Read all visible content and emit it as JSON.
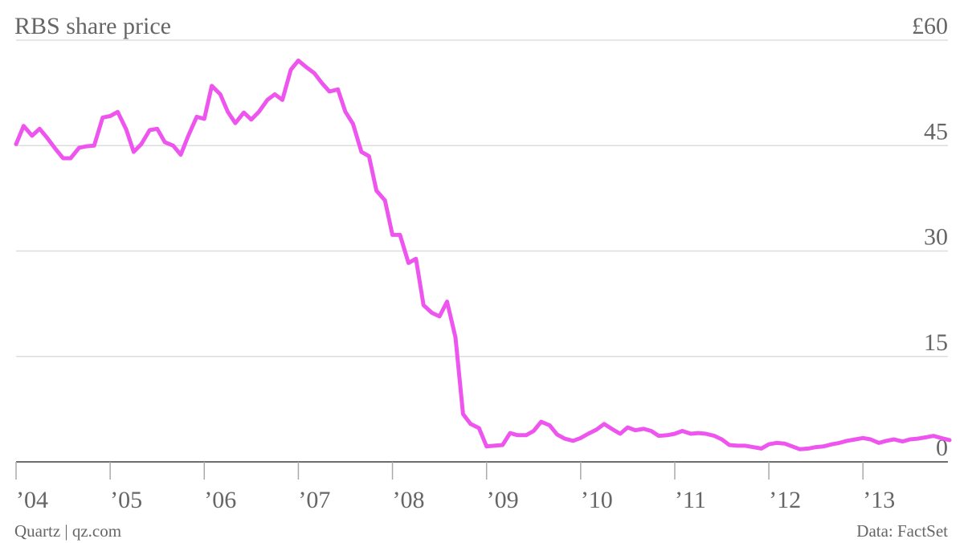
{
  "chart_data": {
    "type": "line",
    "title": "RBS share price",
    "credit": "Quartz | qz.com",
    "source": "Data: FactSet",
    "x": [
      2004.0,
      2004.08,
      2004.17,
      2004.25,
      2004.33,
      2004.42,
      2004.5,
      2004.58,
      2004.67,
      2004.75,
      2004.83,
      2004.92,
      2005.0,
      2005.08,
      2005.17,
      2005.25,
      2005.33,
      2005.42,
      2005.5,
      2005.58,
      2005.67,
      2005.75,
      2005.83,
      2005.92,
      2006.0,
      2006.08,
      2006.17,
      2006.25,
      2006.33,
      2006.42,
      2006.5,
      2006.58,
      2006.67,
      2006.75,
      2006.83,
      2006.92,
      2007.0,
      2007.08,
      2007.17,
      2007.25,
      2007.33,
      2007.42,
      2007.5,
      2007.58,
      2007.67,
      2007.75,
      2007.83,
      2007.92,
      2008.0,
      2008.08,
      2008.17,
      2008.25,
      2008.33,
      2008.42,
      2008.5,
      2008.58,
      2008.67,
      2008.75,
      2008.83,
      2008.92,
      2009.0,
      2009.08,
      2009.17,
      2009.25,
      2009.33,
      2009.42,
      2009.5,
      2009.58,
      2009.67,
      2009.75,
      2009.83,
      2009.92,
      2010.0,
      2010.08,
      2010.17,
      2010.25,
      2010.33,
      2010.42,
      2010.5,
      2010.58,
      2010.67,
      2010.75,
      2010.83,
      2010.92,
      2011.0,
      2011.08,
      2011.17,
      2011.25,
      2011.33,
      2011.42,
      2011.5,
      2011.58,
      2011.67,
      2011.75,
      2011.83,
      2011.92,
      2012.0,
      2012.08,
      2012.17,
      2012.25,
      2012.33,
      2012.42,
      2012.5,
      2012.58,
      2012.67,
      2012.75,
      2012.83,
      2012.92,
      2013.0,
      2013.08,
      2013.17,
      2013.25,
      2013.33,
      2013.42,
      2013.5,
      2013.58,
      2013.67,
      2013.75,
      2013.83,
      2013.92
    ],
    "series": [
      {
        "color": "#ee55ee",
        "values": [
          45.2,
          47.8,
          46.4,
          47.4,
          46.1,
          44.5,
          43.2,
          43.2,
          44.7,
          44.9,
          45.0,
          49.0,
          49.2,
          49.8,
          47.3,
          44.1,
          45.2,
          47.2,
          47.4,
          45.5,
          45.0,
          43.7,
          46.4,
          49.1,
          48.8,
          53.5,
          52.3,
          49.8,
          48.2,
          49.7,
          48.7,
          49.8,
          51.5,
          52.3,
          51.5,
          55.8,
          57.1,
          56.2,
          55.3,
          53.9,
          52.7,
          53.0,
          49.8,
          48.1,
          44.1,
          43.5,
          38.6,
          37.2,
          32.3,
          32.3,
          28.3,
          28.9,
          22.3,
          21.2,
          20.7,
          22.8,
          17.7,
          6.8,
          5.4,
          4.8,
          2.2,
          2.3,
          2.4,
          4.1,
          3.8,
          3.8,
          4.4,
          5.7,
          5.2,
          3.9,
          3.3,
          3.0,
          3.4,
          4.0,
          4.6,
          5.4,
          4.7,
          4.0,
          4.9,
          4.5,
          4.7,
          4.4,
          3.7,
          3.8,
          4.0,
          4.4,
          4.0,
          4.1,
          4.0,
          3.7,
          3.2,
          2.4,
          2.3,
          2.3,
          2.1,
          1.9,
          2.5,
          2.7,
          2.6,
          2.2,
          1.8,
          1.9,
          2.1,
          2.2,
          2.5,
          2.7,
          3.0,
          3.2,
          3.4,
          3.2,
          2.7,
          3.0,
          3.2,
          2.9,
          3.2,
          3.3,
          3.5,
          3.7,
          3.4,
          3.1
        ]
      }
    ],
    "xlim": [
      2004,
      2013.92
    ],
    "xticks": [
      {
        "value": 2004,
        "label": "’04"
      },
      {
        "value": 2005,
        "label": "’05"
      },
      {
        "value": 2006,
        "label": "’06"
      },
      {
        "value": 2007,
        "label": "’07"
      },
      {
        "value": 2008,
        "label": "’08"
      },
      {
        "value": 2009,
        "label": "’09"
      },
      {
        "value": 2010,
        "label": "’10"
      },
      {
        "value": 2011,
        "label": "’11"
      },
      {
        "value": 2012,
        "label": "’12"
      },
      {
        "value": 2013,
        "label": "’13"
      }
    ],
    "ylim": [
      0,
      60
    ],
    "yticks": [
      0,
      15,
      30,
      45,
      {
        "value": 60,
        "label": "£60"
      }
    ],
    "grid": true
  }
}
